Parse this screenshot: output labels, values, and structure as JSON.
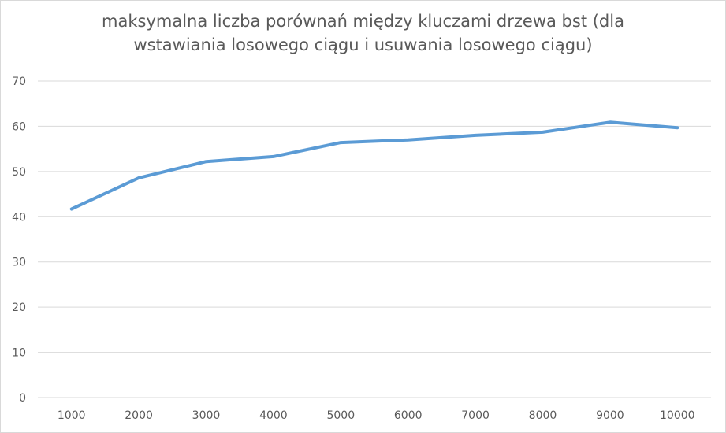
{
  "chart_data": {
    "type": "line",
    "title": "maksymalna liczba porównań między kluczami drzewa bst (dla wstawiania losowego ciągu i usuwania losowego ciągu)",
    "title_lines": [
      "maksymalna liczba porównań między kluczami drzewa bst (dla",
      "wstawiania losowego ciągu i usuwania losowego ciągu)"
    ],
    "xlabel": "",
    "ylabel": "",
    "categories": [
      "1000",
      "2000",
      "3000",
      "4000",
      "5000",
      "6000",
      "7000",
      "8000",
      "9000",
      "10000"
    ],
    "series": [
      {
        "values": [
          41.7,
          48.6,
          52.2,
          53.3,
          56.4,
          57.0,
          58.0,
          58.7,
          60.9,
          59.7
        ],
        "color": "#5b9bd5"
      }
    ],
    "ylim": [
      0,
      70
    ],
    "yticks": [
      0,
      10,
      20,
      30,
      40,
      50,
      60,
      70
    ],
    "grid": true,
    "gridColor": "#d9d9d9",
    "legend": "none"
  }
}
